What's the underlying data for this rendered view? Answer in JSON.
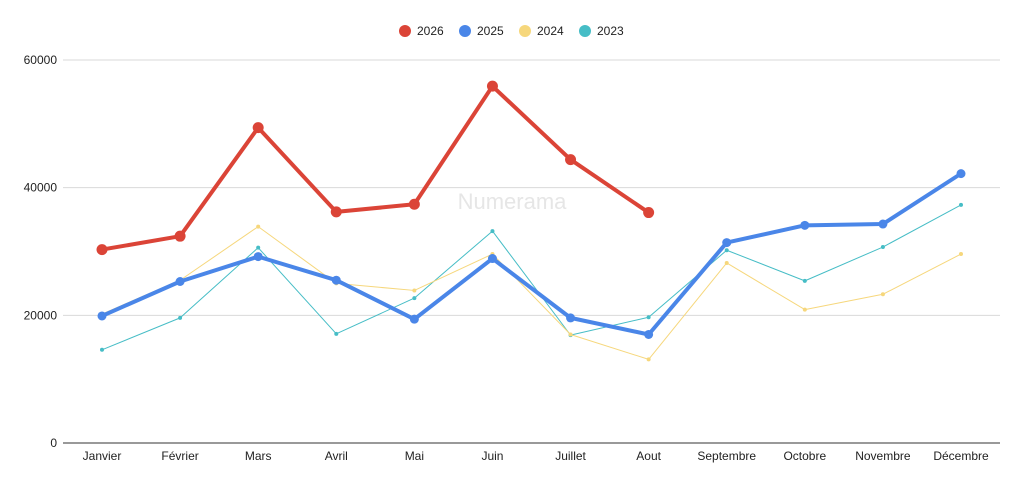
{
  "watermark": "Numerama",
  "chart_data": {
    "type": "line",
    "title": "",
    "xlabel": "",
    "ylabel": "",
    "categories": [
      "Janvier",
      "Février",
      "Mars",
      "Avril",
      "Mai",
      "Juin",
      "Juillet",
      "Aout",
      "Septembre",
      "Octobre",
      "Novembre",
      "Décembre"
    ],
    "ylim": [
      0,
      60000
    ],
    "yticks": [
      "0",
      "20000",
      "40000",
      "60000"
    ],
    "grid": true,
    "legend_position": "top",
    "series": [
      {
        "name": "2026",
        "color": "#db4437",
        "values": [
          30300,
          32400,
          49400,
          36200,
          37400,
          55900,
          44400,
          36100,
          null,
          null,
          null,
          null
        ]
      },
      {
        "name": "2025",
        "color": "#4a86e8",
        "values": [
          19900,
          25300,
          29200,
          25500,
          19400,
          28900,
          19600,
          17000,
          31400,
          34100,
          34300,
          42200
        ]
      },
      {
        "name": "2024",
        "color": "#f6d77c",
        "values": [
          20200,
          25500,
          33900,
          25000,
          23900,
          29600,
          17000,
          13100,
          28200,
          20900,
          23300,
          29600
        ]
      },
      {
        "name": "2023",
        "color": "#46bdc6",
        "values": [
          14600,
          19600,
          30600,
          17100,
          22700,
          33200,
          16900,
          19700,
          30200,
          25400,
          30700,
          37300
        ]
      }
    ]
  }
}
